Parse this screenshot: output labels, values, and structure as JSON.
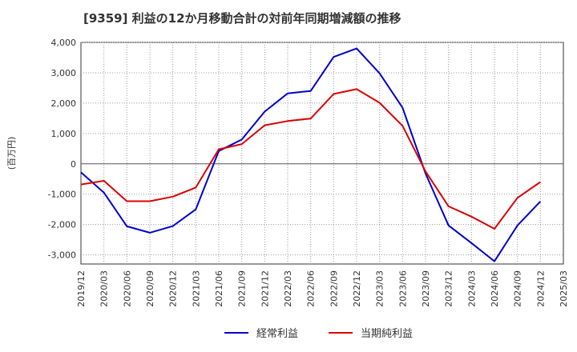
{
  "chart_data": {
    "type": "line",
    "title": "[9359]  利益の12か月移動合計の対前年同期増減額の推移",
    "ylabel": "(百万円)",
    "xlabel": "",
    "ylim": [
      -3300,
      4000
    ],
    "yticks": [
      4000,
      3000,
      2000,
      1000,
      0,
      -1000,
      -2000,
      -3000
    ],
    "ytick_labels": [
      "4,000",
      "3,000",
      "2,000",
      "1,000",
      "0",
      "-1,000",
      "-2,000",
      "-3,000"
    ],
    "categories": [
      "2019/12",
      "2020/03",
      "2020/06",
      "2020/09",
      "2020/12",
      "2021/03",
      "2021/06",
      "2021/09",
      "2021/12",
      "2022/03",
      "2022/06",
      "2022/09",
      "2022/12",
      "2023/03",
      "2023/06",
      "2023/09",
      "2023/12",
      "2024/03",
      "2024/06",
      "2024/09",
      "2024/12",
      "2025/03"
    ],
    "grid": true,
    "legend_position": "bottom-center",
    "series": [
      {
        "name": "経常利益",
        "color": "#0000cc",
        "values": [
          -280,
          -950,
          -2060,
          -2270,
          -2050,
          -1500,
          420,
          800,
          1720,
          2320,
          2400,
          3520,
          3800,
          2980,
          1850,
          -320,
          -2030,
          -2610,
          -3210,
          -2030,
          -1240,
          null
        ]
      },
      {
        "name": "当期純利益",
        "color": "#dd0000",
        "values": [
          -680,
          -560,
          -1230,
          -1230,
          -1080,
          -780,
          480,
          650,
          1270,
          1410,
          1490,
          2300,
          2460,
          2010,
          1250,
          -250,
          -1400,
          -1740,
          -2140,
          -1120,
          -600,
          null
        ]
      }
    ]
  }
}
